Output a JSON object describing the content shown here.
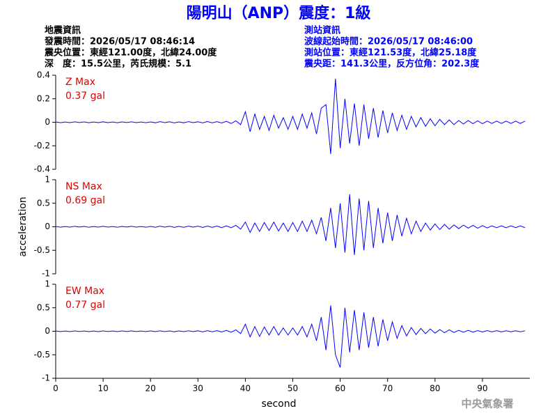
{
  "header": {
    "title": "陽明山（ANP）震度：1級",
    "left": [
      "地震資訊",
      "發震時間：2026/05/17 08:46:14",
      "震央位置：東經121.00度，北緯24.00度",
      "深　度：15.5公里，芮氏規模：5.1"
    ],
    "right": [
      "測站資訊",
      "波線起始時間：2026/05/17 08:46:00",
      "測站位置：東經121.53度，北緯25.18度",
      "震央距：141.3公里，反方位角：202.3度"
    ],
    "footer": "中央氣象署"
  },
  "chart_data": [
    {
      "type": "line",
      "annotations": [
        "Z Max",
        "0.37 gal"
      ],
      "color": "#0000ff",
      "xlim": [
        0,
        100
      ],
      "ylim": [
        -0.4,
        0.4
      ],
      "yticks": [
        -0.4,
        -0.2,
        0,
        0.2,
        0.4
      ],
      "x": [
        0,
        1,
        2,
        3,
        4,
        5,
        6,
        7,
        8,
        9,
        10,
        11,
        12,
        13,
        14,
        15,
        16,
        17,
        18,
        19,
        20,
        21,
        22,
        23,
        24,
        25,
        26,
        27,
        28,
        29,
        30,
        31,
        32,
        33,
        34,
        35,
        36,
        37,
        38,
        39,
        40,
        41,
        42,
        43,
        44,
        45,
        46,
        47,
        48,
        49,
        50,
        51,
        52,
        53,
        54,
        55,
        56,
        57,
        58,
        59,
        60,
        61,
        62,
        63,
        64,
        65,
        66,
        67,
        68,
        69,
        70,
        71,
        72,
        73,
        74,
        75,
        76,
        77,
        78,
        79,
        80,
        81,
        82,
        83,
        84,
        85,
        86,
        87,
        88,
        89,
        90,
        91,
        92,
        93,
        94,
        95,
        96,
        97,
        98,
        99
      ],
      "values": [
        0.003,
        -0.004,
        0.002,
        -0.003,
        0.004,
        -0.002,
        0.003,
        -0.004,
        0.002,
        -0.003,
        0.004,
        -0.003,
        0.002,
        -0.004,
        0.003,
        -0.002,
        0.004,
        -0.003,
        0.002,
        -0.004,
        0.003,
        -0.004,
        0.005,
        -0.003,
        0.004,
        -0.005,
        0.003,
        -0.004,
        0.005,
        -0.003,
        0.004,
        -0.005,
        0.006,
        -0.004,
        0.005,
        -0.006,
        0.008,
        -0.01,
        0.012,
        -0.02,
        0.09,
        -0.08,
        0.07,
        -0.06,
        0.05,
        -0.07,
        0.06,
        -0.05,
        0.04,
        -0.06,
        0.05,
        -0.06,
        0.07,
        -0.05,
        0.08,
        -0.1,
        0.12,
        0.15,
        -0.27,
        0.37,
        -0.22,
        0.2,
        -0.18,
        0.16,
        -0.2,
        0.15,
        -0.14,
        0.12,
        -0.13,
        0.1,
        -0.09,
        0.08,
        -0.07,
        0.06,
        -0.06,
        0.05,
        -0.04,
        0.04,
        -0.035,
        0.03,
        -0.03,
        0.025,
        -0.02,
        0.02,
        -0.02,
        0.015,
        -0.015,
        0.015,
        -0.012,
        0.012,
        -0.012,
        0.01,
        -0.01,
        0.01,
        -0.01,
        0.01,
        -0.01,
        0.01,
        -0.01,
        0.01
      ]
    },
    {
      "type": "line",
      "annotations": [
        "NS Max",
        "0.69 gal"
      ],
      "color": "#0000ff",
      "xlim": [
        0,
        100
      ],
      "ylim": [
        -1,
        1
      ],
      "yticks": [
        -1,
        -0.5,
        0,
        0.5,
        1
      ],
      "ylabel": "acceleration",
      "x": [
        0,
        1,
        2,
        3,
        4,
        5,
        6,
        7,
        8,
        9,
        10,
        11,
        12,
        13,
        14,
        15,
        16,
        17,
        18,
        19,
        20,
        21,
        22,
        23,
        24,
        25,
        26,
        27,
        28,
        29,
        30,
        31,
        32,
        33,
        34,
        35,
        36,
        37,
        38,
        39,
        40,
        41,
        42,
        43,
        44,
        45,
        46,
        47,
        48,
        49,
        50,
        51,
        52,
        53,
        54,
        55,
        56,
        57,
        58,
        59,
        60,
        61,
        62,
        63,
        64,
        65,
        66,
        67,
        68,
        69,
        70,
        71,
        72,
        73,
        74,
        75,
        76,
        77,
        78,
        79,
        80,
        81,
        82,
        83,
        84,
        85,
        86,
        87,
        88,
        89,
        90,
        91,
        92,
        93,
        94,
        95,
        96,
        97,
        98,
        99
      ],
      "values": [
        0.008,
        -0.01,
        0.006,
        -0.008,
        0.01,
        -0.006,
        0.008,
        -0.01,
        0.006,
        -0.008,
        0.01,
        -0.008,
        0.006,
        -0.01,
        0.008,
        -0.006,
        0.01,
        -0.008,
        0.006,
        -0.01,
        0.008,
        -0.01,
        0.012,
        -0.008,
        0.01,
        -0.012,
        0.008,
        -0.01,
        0.012,
        -0.008,
        0.012,
        -0.015,
        0.014,
        -0.012,
        0.015,
        -0.018,
        0.02,
        -0.02,
        0.03,
        -0.05,
        0.1,
        -0.12,
        0.08,
        -0.1,
        0.09,
        -0.08,
        0.1,
        -0.09,
        0.08,
        -0.1,
        0.09,
        -0.1,
        0.12,
        -0.1,
        0.14,
        -0.15,
        0.2,
        -0.3,
        0.4,
        -0.45,
        0.5,
        -0.55,
        0.69,
        -0.6,
        0.6,
        -0.5,
        0.55,
        -0.45,
        0.4,
        -0.35,
        0.3,
        -0.3,
        0.25,
        -0.2,
        0.18,
        -0.15,
        0.12,
        -0.1,
        0.08,
        -0.07,
        0.06,
        -0.06,
        0.05,
        -0.05,
        0.04,
        -0.04,
        0.035,
        -0.03,
        0.03,
        -0.03,
        0.025,
        -0.025,
        0.02,
        -0.02,
        0.02,
        -0.02,
        0.02,
        -0.018,
        0.018,
        -0.018
      ]
    },
    {
      "type": "line",
      "annotations": [
        "EW Max",
        "0.77 gal"
      ],
      "color": "#0000ff",
      "xlim": [
        0,
        100
      ],
      "ylim": [
        -1,
        1
      ],
      "yticks": [
        -1,
        -0.5,
        0,
        0.5,
        1
      ],
      "xlabel": "second",
      "xticks": [
        0,
        10,
        20,
        30,
        40,
        50,
        60,
        70,
        80,
        90
      ],
      "x": [
        0,
        1,
        2,
        3,
        4,
        5,
        6,
        7,
        8,
        9,
        10,
        11,
        12,
        13,
        14,
        15,
        16,
        17,
        18,
        19,
        20,
        21,
        22,
        23,
        24,
        25,
        26,
        27,
        28,
        29,
        30,
        31,
        32,
        33,
        34,
        35,
        36,
        37,
        38,
        39,
        40,
        41,
        42,
        43,
        44,
        45,
        46,
        47,
        48,
        49,
        50,
        51,
        52,
        53,
        54,
        55,
        56,
        57,
        58,
        59,
        60,
        61,
        62,
        63,
        64,
        65,
        66,
        67,
        68,
        69,
        70,
        71,
        72,
        73,
        74,
        75,
        76,
        77,
        78,
        79,
        80,
        81,
        82,
        83,
        84,
        85,
        86,
        87,
        88,
        89,
        90,
        91,
        92,
        93,
        94,
        95,
        96,
        97,
        98,
        99
      ],
      "values": [
        0.006,
        -0.008,
        0.005,
        -0.007,
        0.008,
        -0.005,
        0.006,
        -0.008,
        0.005,
        -0.007,
        0.008,
        -0.006,
        0.005,
        -0.008,
        0.007,
        -0.005,
        0.008,
        -0.006,
        0.005,
        -0.008,
        0.007,
        -0.008,
        0.01,
        -0.007,
        0.008,
        -0.01,
        0.007,
        -0.008,
        0.01,
        -0.007,
        0.01,
        -0.012,
        0.012,
        -0.01,
        0.012,
        -0.015,
        0.018,
        -0.02,
        0.03,
        -0.05,
        0.15,
        -0.12,
        0.1,
        -0.11,
        0.09,
        -0.08,
        0.1,
        -0.08,
        0.07,
        -0.08,
        0.07,
        -0.08,
        0.1,
        -0.12,
        0.15,
        -0.2,
        0.3,
        -0.4,
        0.55,
        -0.5,
        -0.77,
        0.5,
        -0.45,
        0.45,
        -0.4,
        0.4,
        -0.35,
        0.3,
        -0.32,
        0.25,
        -0.2,
        0.2,
        -0.15,
        0.12,
        -0.1,
        0.08,
        -0.07,
        0.06,
        -0.05,
        0.05,
        -0.04,
        0.035,
        -0.03,
        0.03,
        -0.025,
        0.02,
        -0.02,
        0.02,
        -0.018,
        0.015,
        -0.015,
        0.015,
        -0.012,
        0.012,
        -0.012,
        0.01,
        -0.01,
        0.01,
        -0.01,
        0.01
      ]
    }
  ]
}
